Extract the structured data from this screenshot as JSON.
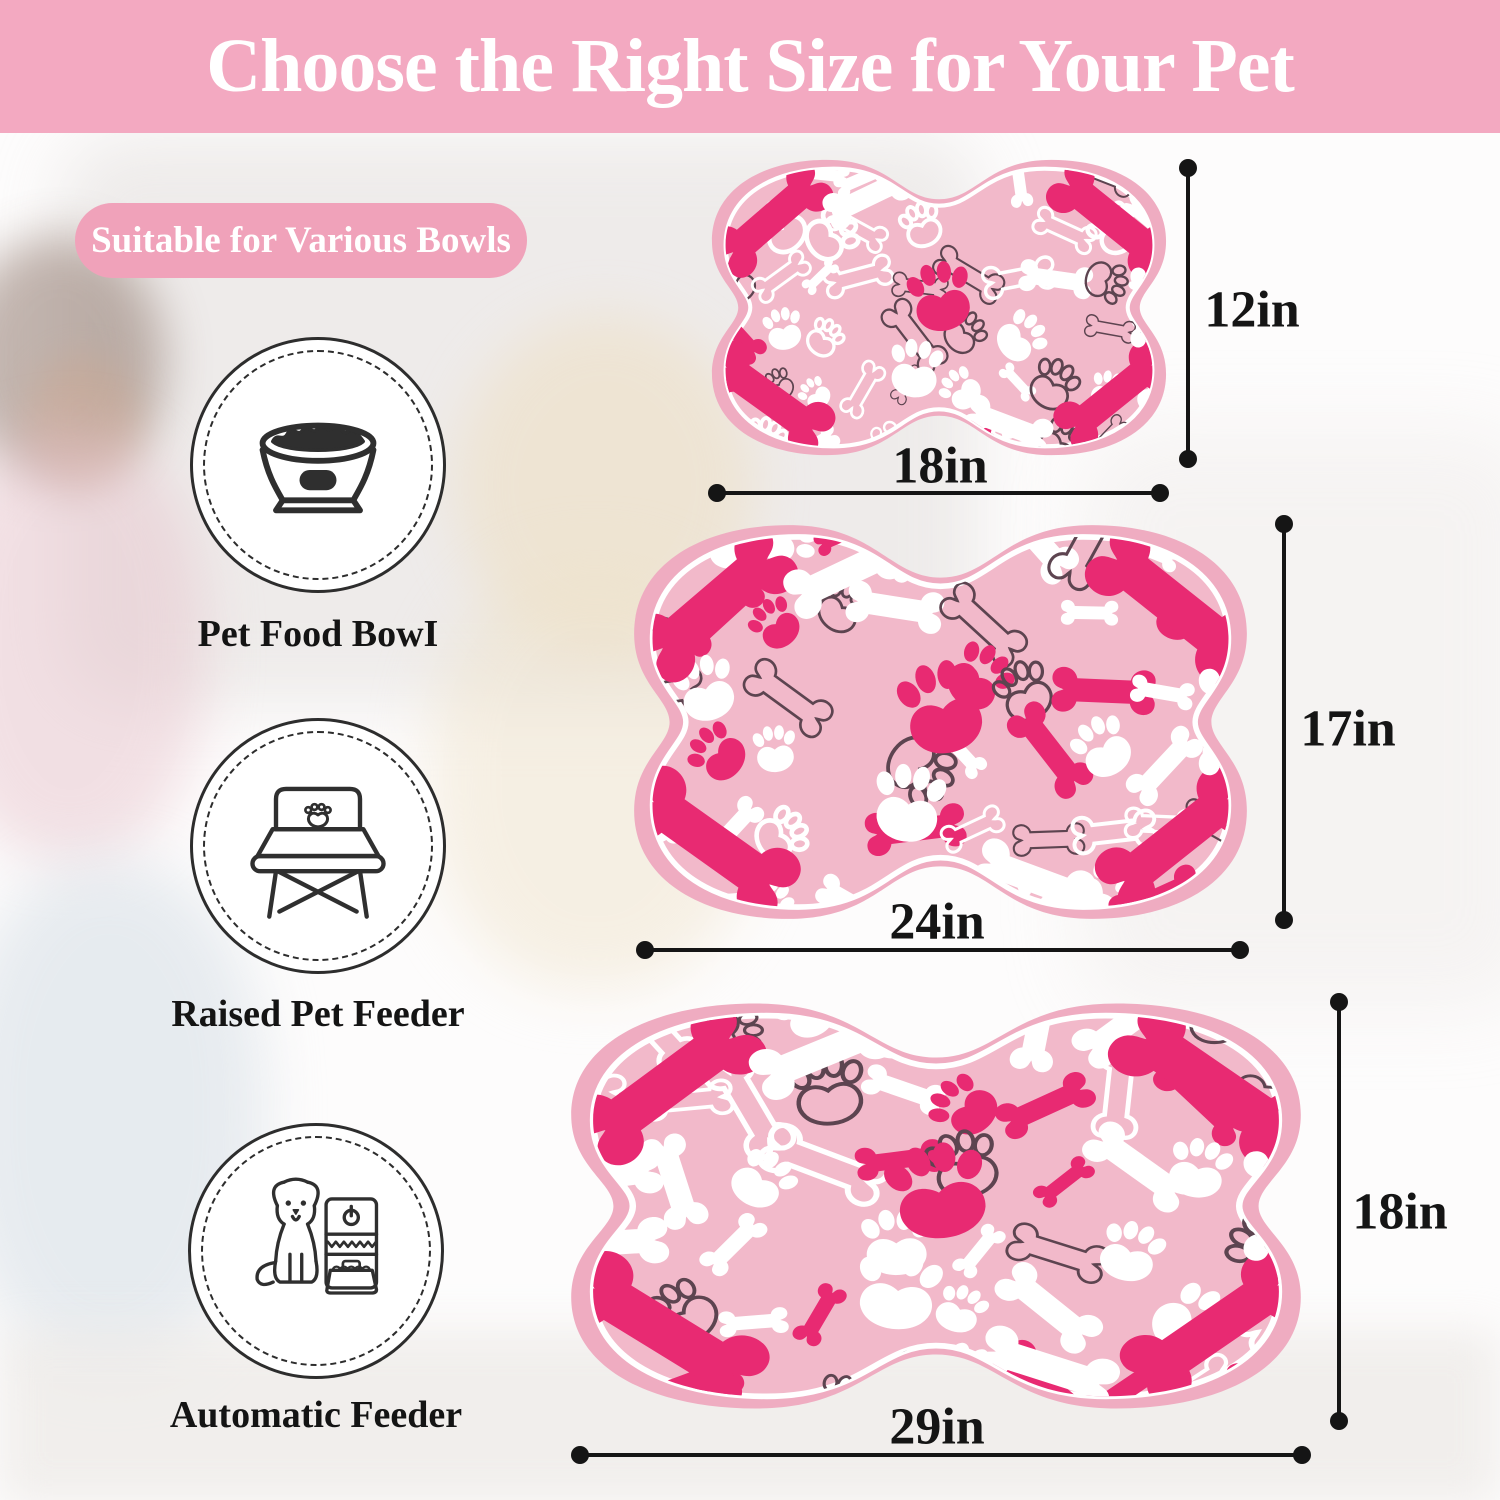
{
  "header": {
    "title": "Choose the Right Size for Your Pet"
  },
  "badge": {
    "label": "Suitable for Various Bowls"
  },
  "features": [
    {
      "label": "Pet Food BowI",
      "icon": "pet-food-bowl-icon"
    },
    {
      "label": "Raised Pet Feeder",
      "icon": "raised-pet-feeder-icon"
    },
    {
      "label": "Automatic Feeder",
      "icon": "automatic-feeder-icon"
    }
  ],
  "mats": [
    {
      "size": "small",
      "width_label": "18in",
      "height_label": "12in"
    },
    {
      "size": "medium",
      "width_label": "24in",
      "height_label": "17in"
    },
    {
      "size": "large",
      "width_label": "29in",
      "height_label": "18in"
    }
  ],
  "colors": {
    "header_bg": "#F3A9C1",
    "badge_bg": "#F0A2BA",
    "mat_edge": "#EFACC1",
    "mat_inner": "#F2B9CA",
    "hot_pink": "#E82A72",
    "outline_dark": "#5d4450",
    "dimension_black": "#151515"
  }
}
